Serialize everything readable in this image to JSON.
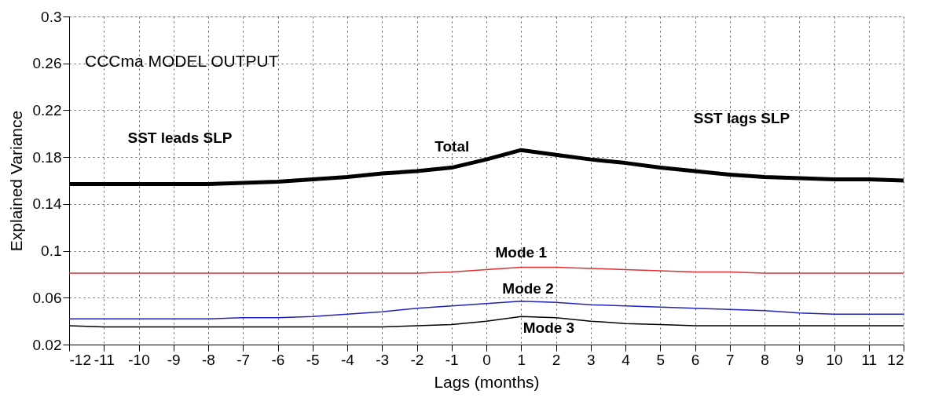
{
  "chart_data": {
    "type": "line",
    "xlabel": "Lags (months)",
    "ylabel": "Explained Variance",
    "x": [
      -12,
      -11,
      -10,
      -9,
      -8,
      -7,
      -6,
      -5,
      -4,
      -3,
      -2,
      -1,
      0,
      1,
      2,
      3,
      4,
      5,
      6,
      7,
      8,
      9,
      10,
      11,
      12
    ],
    "series": [
      {
        "name": "Total",
        "color": "#000000",
        "values": [
          0.157,
          0.157,
          0.157,
          0.157,
          0.157,
          0.158,
          0.159,
          0.161,
          0.163,
          0.166,
          0.168,
          0.171,
          0.178,
          0.186,
          0.182,
          0.178,
          0.175,
          0.171,
          0.168,
          0.165,
          0.163,
          0.162,
          0.161,
          0.161,
          0.16
        ]
      },
      {
        "name": "Mode 1",
        "color": "#e03030",
        "values": [
          0.081,
          0.081,
          0.081,
          0.081,
          0.081,
          0.081,
          0.081,
          0.081,
          0.081,
          0.081,
          0.081,
          0.082,
          0.084,
          0.086,
          0.086,
          0.085,
          0.084,
          0.083,
          0.082,
          0.082,
          0.081,
          0.081,
          0.081,
          0.081,
          0.081
        ]
      },
      {
        "name": "Mode 2",
        "color": "#2020c0",
        "values": [
          0.042,
          0.042,
          0.042,
          0.042,
          0.042,
          0.043,
          0.043,
          0.044,
          0.046,
          0.048,
          0.051,
          0.053,
          0.055,
          0.057,
          0.056,
          0.054,
          0.053,
          0.052,
          0.051,
          0.05,
          0.049,
          0.047,
          0.046,
          0.046,
          0.046
        ]
      },
      {
        "name": "Mode 3",
        "color": "#000000",
        "values": [
          0.036,
          0.035,
          0.035,
          0.035,
          0.035,
          0.035,
          0.035,
          0.035,
          0.035,
          0.035,
          0.036,
          0.037,
          0.04,
          0.044,
          0.043,
          0.04,
          0.038,
          0.037,
          0.036,
          0.036,
          0.036,
          0.036,
          0.036,
          0.036,
          0.036
        ]
      }
    ],
    "xlim": [
      -12,
      12
    ],
    "ylim": [
      0.02,
      0.3
    ],
    "xticks": [
      -12,
      -11,
      -10,
      -9,
      -8,
      -7,
      -6,
      -5,
      -4,
      -3,
      -2,
      -1,
      0,
      1,
      2,
      3,
      4,
      5,
      6,
      7,
      8,
      9,
      10,
      11,
      12
    ],
    "yticks": [
      0.02,
      0.06,
      0.1,
      0.14,
      0.18,
      0.22,
      0.26,
      0.3
    ],
    "grid": true,
    "line_style": "solid",
    "marker": "none",
    "annotations": [
      "CCCma MODEL OUTPUT",
      "SST leads SLP",
      "SST lags SLP"
    ]
  }
}
